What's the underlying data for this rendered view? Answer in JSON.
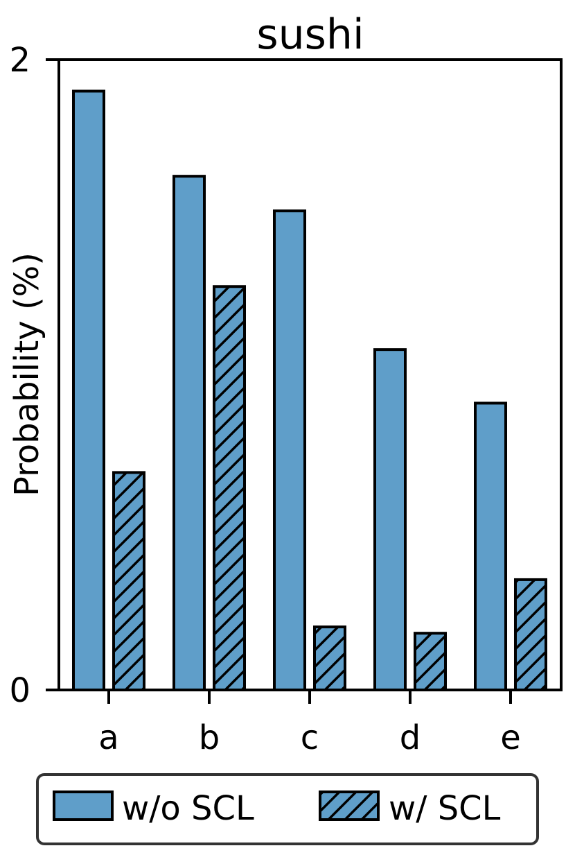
{
  "chart_data": {
    "type": "bar",
    "title": "sushi",
    "xlabel": "",
    "ylabel": "Probability (%)",
    "ylim": [
      0,
      2
    ],
    "yticks": [
      "0",
      "2"
    ],
    "categories": [
      "a",
      "b",
      "c",
      "d",
      "e"
    ],
    "series": [
      {
        "name": "w/o SCL",
        "values": [
          1.9,
          1.63,
          1.52,
          1.08,
          0.91
        ],
        "color": "#5f9ec9",
        "hatch": false
      },
      {
        "name": "w/ SCL",
        "values": [
          0.69,
          1.28,
          0.2,
          0.18,
          0.35
        ],
        "color": "#5f9ec9",
        "hatch": true
      }
    ],
    "grid": false,
    "legend_position": "bottom"
  }
}
